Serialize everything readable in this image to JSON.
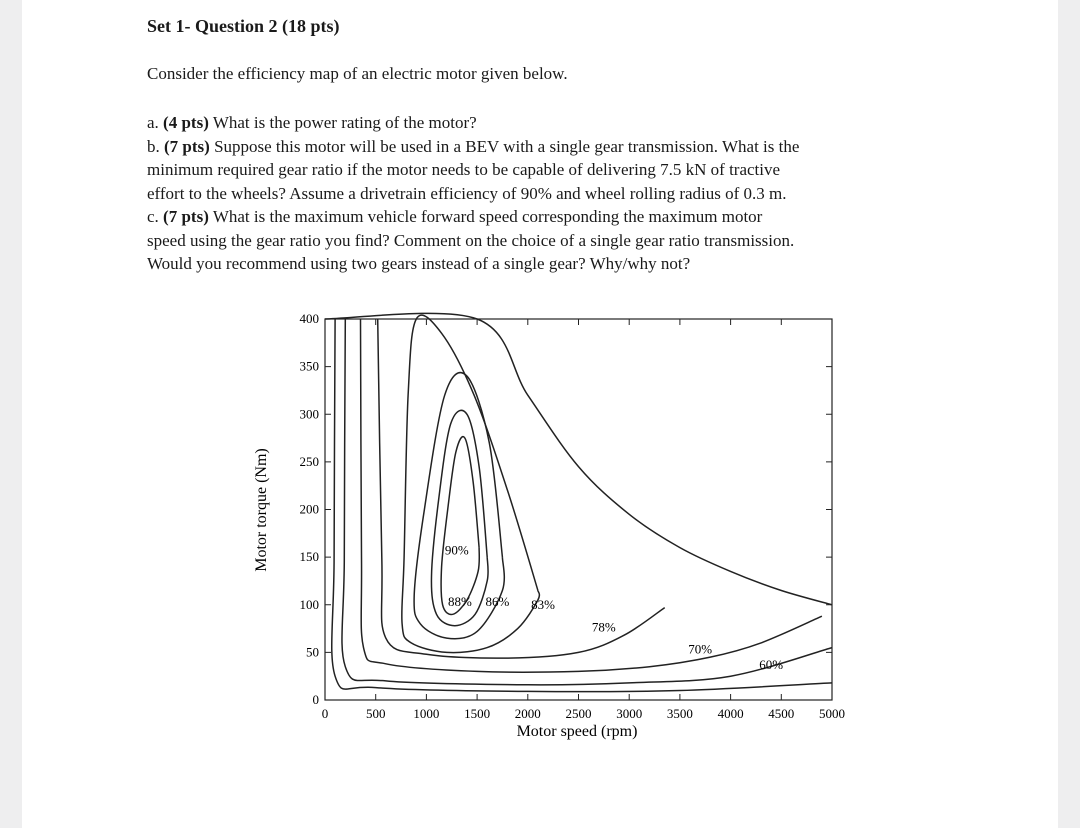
{
  "document": {
    "title": "Set 1- Question 2 (18 pts)",
    "intro": "Consider the efficiency map of an electric motor given below.",
    "questions": [
      {
        "label": "a.",
        "points": "(4 pts)",
        "lines": [
          "What is the power rating of the motor?"
        ]
      },
      {
        "label": "b.",
        "points": "(7 pts)",
        "lines": [
          "Suppose this motor will be used in a BEV with a single gear transmission. What is the",
          "minimum required gear ratio if the motor needs to be capable of delivering 7.5 kN of tractive",
          "effort to the wheels? Assume a drivetrain efficiency of 90% and wheel rolling radius of 0.3 m."
        ]
      },
      {
        "label": "c.",
        "points": "(7 pts)",
        "lines": [
          "What is the maximum vehicle forward speed corresponding the maximum motor",
          "speed using the gear ratio you find? Comment on the choice of a single gear ratio transmission.",
          "Would you recommend using two gears instead of a single gear? Why/why not?"
        ]
      }
    ]
  },
  "chart_data": {
    "type": "contour",
    "xlabel": "Motor speed (rpm)",
    "ylabel": "Motor torque (Nm)",
    "xlim": [
      0,
      5000
    ],
    "ylim": [
      0,
      400
    ],
    "xticks": [
      0,
      500,
      1000,
      1500,
      2000,
      2500,
      3000,
      3500,
      4000,
      4500,
      5000
    ],
    "yticks": [
      0,
      50,
      100,
      150,
      200,
      250,
      300,
      350,
      400
    ],
    "max_torque_curve": [
      [
        0,
        400
      ],
      [
        1500,
        400
      ],
      [
        2000,
        320
      ],
      [
        2500,
        245
      ],
      [
        3000,
        195
      ],
      [
        3500,
        160
      ],
      [
        4000,
        135
      ],
      [
        4500,
        115
      ],
      [
        5000,
        100
      ]
    ],
    "contours": [
      {
        "label": "90%",
        "label_pos": [
          1300,
          157
        ],
        "points": [
          [
            1520,
            160
          ],
          [
            1460,
            230
          ],
          [
            1380,
            275
          ],
          [
            1290,
            260
          ],
          [
            1210,
            200
          ],
          [
            1150,
            140
          ],
          [
            1160,
            100
          ],
          [
            1260,
            90
          ],
          [
            1400,
            105
          ],
          [
            1510,
            135
          ],
          [
            1520,
            160
          ]
        ]
      },
      {
        "label": "88%",
        "label_pos": [
          1330,
          103
        ],
        "points": [
          [
            1600,
            150
          ],
          [
            1520,
            245
          ],
          [
            1400,
            300
          ],
          [
            1240,
            290
          ],
          [
            1120,
            210
          ],
          [
            1050,
            130
          ],
          [
            1100,
            90
          ],
          [
            1280,
            78
          ],
          [
            1480,
            90
          ],
          [
            1600,
            125
          ],
          [
            1600,
            150
          ]
        ]
      },
      {
        "label": "86%",
        "label_pos": [
          1700,
          103
        ],
        "points": [
          [
            1750,
            150
          ],
          [
            1620,
            270
          ],
          [
            1400,
            340
          ],
          [
            1180,
            320
          ],
          [
            980,
            200
          ],
          [
            880,
            110
          ],
          [
            940,
            80
          ],
          [
            1200,
            65
          ],
          [
            1500,
            72
          ],
          [
            1750,
            115
          ],
          [
            1750,
            150
          ]
        ]
      },
      {
        "label": "83%",
        "label_pos": [
          2150,
          100
        ],
        "points": [
          [
            2100,
            115
          ],
          [
            1800,
            220
          ],
          [
            1470,
            320
          ],
          [
            1150,
            385
          ],
          [
            900,
            400
          ],
          [
            820,
            320
          ],
          [
            780,
            150
          ],
          [
            760,
            80
          ],
          [
            850,
            60
          ],
          [
            1200,
            50
          ],
          [
            1600,
            55
          ],
          [
            1900,
            75
          ],
          [
            2100,
            105
          ],
          [
            2100,
            115
          ]
        ]
      },
      {
        "label": "78%",
        "label_pos": [
          2750,
          76
        ],
        "points": [
          [
            520,
            400
          ],
          [
            560,
            150
          ],
          [
            600,
            65
          ],
          [
            1000,
            48
          ],
          [
            1800,
            44
          ],
          [
            2500,
            50
          ],
          [
            2950,
            68
          ],
          [
            3350,
            97
          ]
        ]
      },
      {
        "label": "70%",
        "label_pos": [
          3700,
          53
        ],
        "points": [
          [
            350,
            400
          ],
          [
            360,
            150
          ],
          [
            380,
            55
          ],
          [
            600,
            38
          ],
          [
            1500,
            30
          ],
          [
            2500,
            30
          ],
          [
            3200,
            35
          ],
          [
            3800,
            45
          ],
          [
            4300,
            60
          ],
          [
            4900,
            88
          ]
        ]
      },
      {
        "label": "60%",
        "label_pos": [
          4400,
          37
        ],
        "points": [
          [
            200,
            400
          ],
          [
            190,
            150
          ],
          [
            200,
            35
          ],
          [
            600,
            20
          ],
          [
            2000,
            16
          ],
          [
            3000,
            18
          ],
          [
            4000,
            25
          ],
          [
            5000,
            55
          ]
        ]
      },
      {
        "label": "",
        "label_pos": null,
        "points": [
          [
            100,
            400
          ],
          [
            90,
            150
          ],
          [
            100,
            25
          ],
          [
            500,
            13
          ],
          [
            2000,
            9
          ],
          [
            3500,
            10
          ],
          [
            5000,
            18
          ]
        ]
      }
    ]
  }
}
